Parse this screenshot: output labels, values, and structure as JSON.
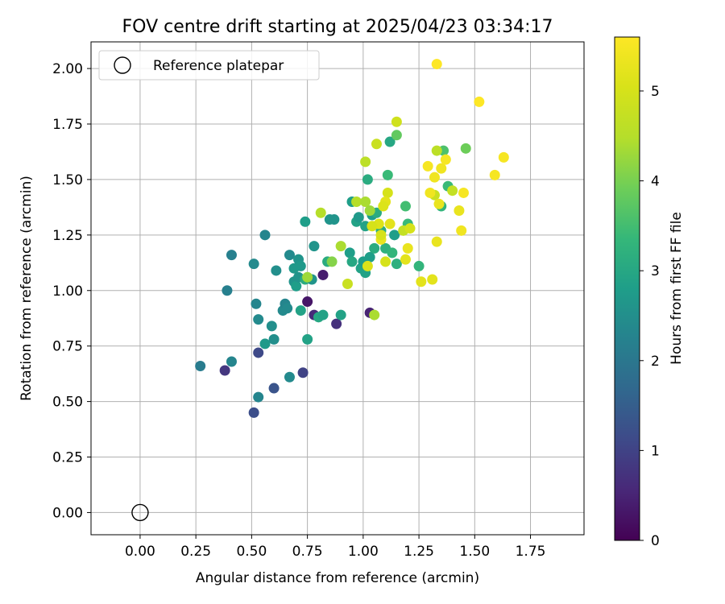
{
  "chart_data": {
    "type": "scatter",
    "title": "FOV centre drift starting at 2025/04/23 03:34:17",
    "xlabel": "Angular distance from reference (arcmin)",
    "ylabel": "Rotation from reference (arcmin)",
    "xlim": [
      -0.22,
      1.99
    ],
    "ylim": [
      -0.1,
      2.12
    ],
    "xticks": [
      "0.00",
      "0.25",
      "0.50",
      "0.75",
      "1.00",
      "1.25",
      "1.50",
      "1.75"
    ],
    "yticks": [
      "0.00",
      "0.25",
      "0.50",
      "0.75",
      "1.00",
      "1.25",
      "1.50",
      "1.75",
      "2.00"
    ],
    "grid": true,
    "legend": {
      "position": "top-left",
      "entries": [
        "Reference platepar"
      ]
    },
    "reference_point": {
      "x": 0.0,
      "y": 0.0,
      "marker": "open-circle"
    },
    "colorbar": {
      "label": "Hours from first FF file",
      "colormap": "viridis",
      "range": [
        0,
        5.6
      ],
      "ticks": [
        "0",
        "1",
        "2",
        "3",
        "4",
        "5"
      ]
    },
    "series": [
      {
        "points": [
          [
            0.38,
            0.64,
            0.8
          ],
          [
            0.51,
            0.45,
            1.2
          ],
          [
            0.53,
            0.72,
            1.1
          ],
          [
            0.6,
            0.56,
            1.3
          ],
          [
            0.73,
            0.63,
            1.0
          ],
          [
            0.75,
            0.95,
            0.3
          ],
          [
            0.78,
            0.89,
            0.6
          ],
          [
            0.82,
            1.07,
            0.4
          ],
          [
            0.88,
            0.85,
            0.7
          ],
          [
            1.03,
            0.9,
            0.5
          ],
          [
            0.27,
            0.66,
            2.1
          ],
          [
            0.39,
            1.0,
            2.2
          ],
          [
            0.41,
            1.16,
            2.2
          ],
          [
            0.41,
            0.68,
            2.3
          ],
          [
            0.51,
            1.12,
            2.4
          ],
          [
            0.52,
            0.94,
            2.3
          ],
          [
            0.53,
            0.87,
            2.4
          ],
          [
            0.53,
            0.52,
            2.3
          ],
          [
            0.56,
            1.25,
            2.3
          ],
          [
            0.56,
            0.76,
            2.7
          ],
          [
            0.59,
            0.84,
            2.5
          ],
          [
            0.6,
            0.78,
            2.5
          ],
          [
            0.61,
            1.09,
            2.5
          ],
          [
            0.64,
            0.91,
            2.4
          ],
          [
            0.65,
            0.94,
            2.3
          ],
          [
            0.66,
            0.92,
            2.4
          ],
          [
            0.67,
            1.16,
            2.4
          ],
          [
            0.67,
            0.61,
            2.4
          ],
          [
            0.69,
            1.04,
            2.6
          ],
          [
            0.69,
            1.1,
            2.7
          ],
          [
            0.7,
            1.02,
            2.8
          ],
          [
            0.71,
            1.06,
            2.6
          ],
          [
            0.71,
            1.14,
            2.6
          ],
          [
            0.72,
            1.11,
            2.7
          ],
          [
            0.72,
            0.91,
            2.9
          ],
          [
            0.74,
            1.31,
            2.8
          ],
          [
            0.74,
            1.05,
            3.1
          ],
          [
            0.75,
            0.78,
            2.9
          ],
          [
            0.77,
            1.05,
            2.6
          ],
          [
            0.78,
            1.2,
            2.6
          ],
          [
            0.8,
            0.88,
            3.0
          ],
          [
            0.82,
            0.89,
            2.9
          ],
          [
            0.84,
            1.13,
            3.1
          ],
          [
            0.85,
            1.32,
            2.6
          ],
          [
            0.87,
            1.32,
            2.6
          ],
          [
            0.9,
            0.89,
            2.9
          ],
          [
            0.94,
            1.17,
            2.8
          ],
          [
            0.95,
            1.4,
            2.8
          ],
          [
            0.95,
            1.13,
            3.0
          ],
          [
            0.97,
            1.31,
            2.9
          ],
          [
            0.98,
            1.33,
            2.7
          ],
          [
            0.99,
            1.1,
            2.9
          ],
          [
            1.0,
            1.13,
            2.8
          ],
          [
            1.01,
            1.08,
            2.9
          ],
          [
            1.01,
            1.29,
            2.9
          ],
          [
            1.02,
            1.5,
            3.1
          ],
          [
            1.03,
            1.15,
            2.8
          ],
          [
            1.04,
            1.34,
            2.8
          ],
          [
            1.05,
            1.19,
            3.1
          ],
          [
            1.06,
            1.35,
            3.1
          ],
          [
            1.08,
            1.27,
            3.1
          ],
          [
            1.1,
            1.19,
            3.2
          ],
          [
            1.11,
            1.52,
            3.4
          ],
          [
            1.12,
            1.67,
            3.0
          ],
          [
            1.13,
            1.17,
            3.3
          ],
          [
            1.14,
            1.25,
            2.8
          ],
          [
            1.15,
            1.12,
            3.2
          ],
          [
            1.19,
            1.38,
            3.5
          ],
          [
            1.2,
            1.3,
            3.4
          ],
          [
            1.25,
            1.11,
            3.3
          ],
          [
            1.35,
            1.38,
            3.3
          ],
          [
            1.38,
            1.47,
            3.4
          ],
          [
            1.46,
            1.64,
            3.9
          ],
          [
            1.15,
            1.7,
            3.8
          ],
          [
            1.36,
            1.63,
            3.6
          ],
          [
            0.75,
            1.06,
            4.3
          ],
          [
            0.81,
            1.35,
            4.5
          ],
          [
            0.86,
            1.13,
            4.1
          ],
          [
            0.9,
            1.2,
            4.4
          ],
          [
            0.93,
            1.03,
            4.8
          ],
          [
            0.97,
            1.4,
            4.5
          ],
          [
            1.01,
            1.58,
            4.6
          ],
          [
            1.01,
            1.4,
            4.4
          ],
          [
            1.03,
            1.36,
            4.3
          ],
          [
            1.05,
            0.89,
            4.4
          ],
          [
            1.06,
            1.66,
            4.8
          ],
          [
            1.1,
            1.13,
            5.0
          ],
          [
            1.11,
            1.44,
            5.0
          ],
          [
            1.12,
            1.3,
            5.2
          ],
          [
            1.15,
            1.76,
            4.9
          ],
          [
            1.18,
            1.27,
            4.7
          ],
          [
            1.21,
            1.28,
            5.0
          ],
          [
            1.32,
            1.43,
            4.8
          ],
          [
            1.33,
            1.63,
            4.6
          ],
          [
            1.4,
            1.45,
            4.7
          ],
          [
            1.07,
            1.3,
            5.1
          ],
          [
            1.08,
            1.23,
            5.3
          ],
          [
            1.1,
            1.4,
            5.2
          ],
          [
            1.19,
            1.14,
            5.2
          ],
          [
            1.2,
            1.19,
            5.3
          ],
          [
            1.02,
            1.11,
            5.1
          ],
          [
            1.04,
            1.29,
            5.0
          ],
          [
            1.08,
            1.25,
            5.0
          ],
          [
            1.26,
            1.04,
            5.2
          ],
          [
            1.29,
            1.56,
            5.5
          ],
          [
            1.3,
            1.44,
            5.4
          ],
          [
            1.31,
            1.05,
            5.2
          ],
          [
            1.32,
            1.51,
            5.4
          ],
          [
            1.33,
            1.22,
            5.3
          ],
          [
            1.34,
            1.39,
            5.3
          ],
          [
            1.35,
            1.55,
            5.4
          ],
          [
            1.37,
            1.59,
            5.5
          ],
          [
            1.43,
            1.36,
            5.3
          ],
          [
            1.44,
            1.27,
            5.4
          ],
          [
            1.45,
            1.44,
            5.5
          ],
          [
            1.52,
            1.85,
            5.6
          ],
          [
            1.59,
            1.52,
            5.5
          ],
          [
            1.63,
            1.6,
            5.5
          ],
          [
            1.33,
            2.02,
            5.6
          ],
          [
            1.09,
            1.38,
            5.1
          ]
        ]
      }
    ]
  }
}
